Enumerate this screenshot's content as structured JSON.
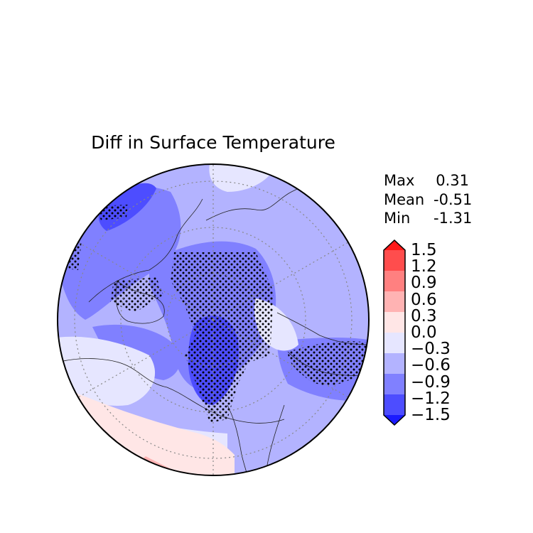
{
  "map": {
    "title": "Diff in Surface Temperature",
    "stats": [
      {
        "label": "Max",
        "value": "0.31"
      },
      {
        "label": "Mean",
        "value": "-0.51"
      },
      {
        "label": "Min",
        "value": "-1.31"
      }
    ],
    "colorbar": {
      "tick_labels": [
        "1.5",
        "1.2",
        "0.9",
        "0.6",
        "0.3",
        "0.0",
        "−0.3",
        "−0.6",
        "−0.9",
        "−1.2",
        "−1.5"
      ],
      "colors": [
        "#ff1a1a",
        "#ff4d4d",
        "#ff8080",
        "#ffb3b3",
        "#ffe6e6",
        "#e6e6ff",
        "#b3b3ff",
        "#8080ff",
        "#4d4dff",
        "#1a1aff"
      ],
      "extend": "both"
    },
    "projection": "north polar stereographic",
    "stippling": "dots mark significant regions"
  }
}
